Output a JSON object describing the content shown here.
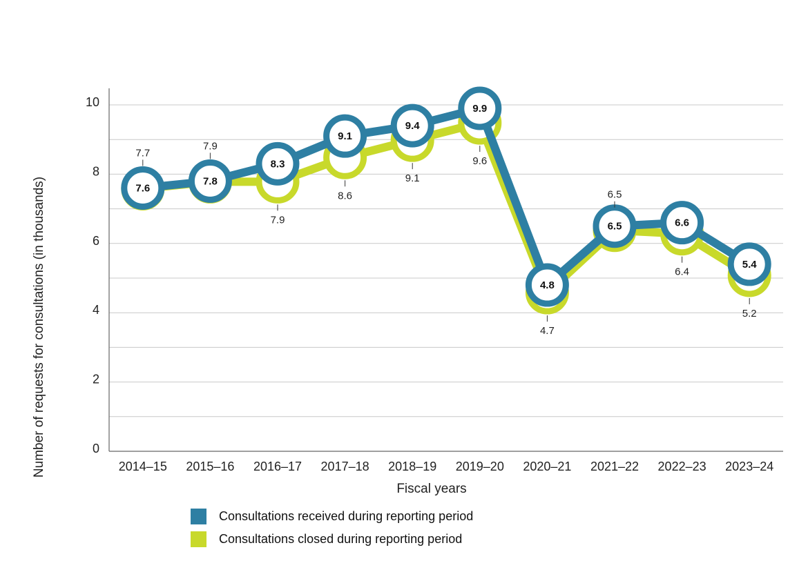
{
  "chart_data": {
    "type": "line",
    "title": "",
    "xlabel": "Fiscal years",
    "ylabel": "Number of requests for consultations (in thousands)",
    "ylim": [
      0,
      10
    ],
    "yticks": [
      "0",
      "2",
      "4",
      "6",
      "8",
      "10"
    ],
    "grid": true,
    "categories": [
      "2014–15",
      "2015–16",
      "2016–17",
      "2017–18",
      "2018–19",
      "2019–20",
      "2020–21",
      "2021–22",
      "2022–23",
      "2023–24"
    ],
    "series": [
      {
        "name": "Consultations closed during reporting period",
        "color": "#c8d92b",
        "values": [
          7.7,
          7.9,
          7.9,
          8.6,
          9.1,
          9.6,
          4.7,
          6.5,
          6.4,
          5.2
        ],
        "labels": [
          "7.7",
          "7.9",
          "7.9",
          "8.6",
          "9.1",
          "9.6",
          "4.7",
          "6.5",
          "6.4",
          "5.2"
        ],
        "label_positions": [
          "above",
          "above",
          "below",
          "below",
          "below",
          "below",
          "below",
          "above",
          "below",
          "below"
        ]
      },
      {
        "name": "Consultations received during reporting period",
        "color": "#2e7fa3",
        "values": [
          7.6,
          7.8,
          8.3,
          9.1,
          9.4,
          9.9,
          4.8,
          6.5,
          6.6,
          5.4
        ],
        "labels": [
          "7.6",
          "7.8",
          "8.3",
          "9.1",
          "9.4",
          "9.9",
          "4.8",
          "6.5",
          "6.6",
          "5.4"
        ]
      }
    ],
    "legend": [
      {
        "label": "Consultations received during reporting period",
        "color": "#2e7fa3"
      },
      {
        "label": "Consultations closed during reporting period",
        "color": "#c8d92b"
      }
    ],
    "legend_position": "bottom"
  }
}
